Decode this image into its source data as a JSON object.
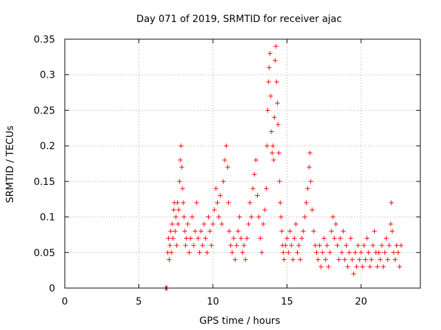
{
  "chart_data": {
    "type": "scatter",
    "title": "Day 071 of 2019, SRMTID for receiver ajac",
    "xlabel": "GPS time / hours",
    "ylabel": "SRMTID / TECUs",
    "xlim": [
      0,
      24
    ],
    "ylim": [
      0,
      0.35
    ],
    "xticks": [
      0,
      5,
      10,
      15,
      20
    ],
    "xtick_labels": [
      "0",
      "5",
      "10",
      "15",
      "20"
    ],
    "yticks": [
      0,
      0.05,
      0.1,
      0.15,
      0.2,
      0.25,
      0.3,
      0.35
    ],
    "ytick_labels": [
      "0",
      "0.05",
      "0.1",
      "0.15",
      "0.2",
      "0.25",
      "0.3",
      "0.35"
    ],
    "grid": true,
    "marker": "plus",
    "color": "#ff0000",
    "series": [
      {
        "name": "SRMTID",
        "points": [
          [
            6.8,
            0.0
          ],
          [
            6.85,
            0.0
          ],
          [
            6.9,
            0.0
          ],
          [
            6.95,
            0.05
          ],
          [
            7.0,
            0.07
          ],
          [
            7.05,
            0.04
          ],
          [
            7.1,
            0.06
          ],
          [
            7.15,
            0.08
          ],
          [
            7.2,
            0.05
          ],
          [
            7.25,
            0.09
          ],
          [
            7.3,
            0.07
          ],
          [
            7.35,
            0.11
          ],
          [
            7.4,
            0.12
          ],
          [
            7.45,
            0.08
          ],
          [
            7.5,
            0.1
          ],
          [
            7.55,
            0.06
          ],
          [
            7.6,
            0.12
          ],
          [
            7.65,
            0.09
          ],
          [
            7.7,
            0.11
          ],
          [
            7.75,
            0.15
          ],
          [
            7.8,
            0.18
          ],
          [
            7.85,
            0.2
          ],
          [
            7.9,
            0.17
          ],
          [
            7.95,
            0.14
          ],
          [
            8.0,
            0.12
          ],
          [
            8.05,
            0.1
          ],
          [
            8.1,
            0.08
          ],
          [
            8.15,
            0.06
          ],
          [
            8.2,
            0.07
          ],
          [
            8.3,
            0.09
          ],
          [
            8.4,
            0.05
          ],
          [
            8.5,
            0.07
          ],
          [
            8.6,
            0.1
          ],
          [
            8.7,
            0.06
          ],
          [
            8.8,
            0.08
          ],
          [
            8.9,
            0.12
          ],
          [
            9.0,
            0.07
          ],
          [
            9.1,
            0.05
          ],
          [
            9.2,
            0.08
          ],
          [
            9.3,
            0.06
          ],
          [
            9.4,
            0.09
          ],
          [
            9.5,
            0.07
          ],
          [
            9.6,
            0.05
          ],
          [
            9.7,
            0.1
          ],
          [
            9.8,
            0.08
          ],
          [
            9.9,
            0.06
          ],
          [
            10.0,
            0.09
          ],
          [
            10.1,
            0.11
          ],
          [
            10.2,
            0.14
          ],
          [
            10.3,
            0.12
          ],
          [
            10.4,
            0.1
          ],
          [
            10.5,
            0.13
          ],
          [
            10.6,
            0.09
          ],
          [
            10.7,
            0.15
          ],
          [
            10.8,
            0.18
          ],
          [
            10.9,
            0.2
          ],
          [
            11.0,
            0.17
          ],
          [
            11.05,
            0.12
          ],
          [
            11.1,
            0.08
          ],
          [
            11.2,
            0.06
          ],
          [
            11.3,
            0.05
          ],
          [
            11.4,
            0.07
          ],
          [
            11.5,
            0.04
          ],
          [
            11.6,
            0.06
          ],
          [
            11.7,
            0.08
          ],
          [
            11.8,
            0.1
          ],
          [
            11.9,
            0.07
          ],
          [
            12.0,
            0.05
          ],
          [
            12.1,
            0.06
          ],
          [
            12.2,
            0.04
          ],
          [
            12.3,
            0.07
          ],
          [
            12.4,
            0.09
          ],
          [
            12.5,
            0.12
          ],
          [
            12.6,
            0.1
          ],
          [
            12.7,
            0.14
          ],
          [
            12.8,
            0.16
          ],
          [
            12.9,
            0.18
          ],
          [
            13.0,
            0.13
          ],
          [
            13.1,
            0.1
          ],
          [
            13.2,
            0.07
          ],
          [
            13.3,
            0.05
          ],
          [
            13.4,
            0.09
          ],
          [
            13.5,
            0.11
          ],
          [
            13.6,
            0.14
          ],
          [
            13.65,
            0.2
          ],
          [
            13.7,
            0.25
          ],
          [
            13.75,
            0.29
          ],
          [
            13.8,
            0.31
          ],
          [
            13.85,
            0.33
          ],
          [
            13.9,
            0.27
          ],
          [
            13.95,
            0.22
          ],
          [
            14.0,
            0.19
          ],
          [
            14.05,
            0.2
          ],
          [
            14.1,
            0.18
          ],
          [
            14.15,
            0.24
          ],
          [
            14.2,
            0.32
          ],
          [
            14.25,
            0.34
          ],
          [
            14.3,
            0.29
          ],
          [
            14.35,
            0.26
          ],
          [
            14.4,
            0.23
          ],
          [
            14.45,
            0.19
          ],
          [
            14.5,
            0.15
          ],
          [
            14.55,
            0.12
          ],
          [
            14.6,
            0.1
          ],
          [
            14.65,
            0.08
          ],
          [
            14.7,
            0.06
          ],
          [
            14.75,
            0.05
          ],
          [
            14.8,
            0.04
          ],
          [
            14.9,
            0.06
          ],
          [
            15.0,
            0.07
          ],
          [
            15.1,
            0.05
          ],
          [
            15.2,
            0.08
          ],
          [
            15.3,
            0.06
          ],
          [
            15.4,
            0.04
          ],
          [
            15.5,
            0.07
          ],
          [
            15.6,
            0.09
          ],
          [
            15.7,
            0.05
          ],
          [
            15.8,
            0.06
          ],
          [
            15.9,
            0.04
          ],
          [
            16.0,
            0.07
          ],
          [
            16.1,
            0.08
          ],
          [
            16.2,
            0.1
          ],
          [
            16.3,
            0.12
          ],
          [
            16.4,
            0.14
          ],
          [
            16.5,
            0.17
          ],
          [
            16.55,
            0.19
          ],
          [
            16.6,
            0.15
          ],
          [
            16.7,
            0.11
          ],
          [
            16.8,
            0.08
          ],
          [
            16.9,
            0.06
          ],
          [
            17.0,
            0.05
          ],
          [
            17.1,
            0.04
          ],
          [
            17.2,
            0.06
          ],
          [
            17.3,
            0.03
          ],
          [
            17.4,
            0.05
          ],
          [
            17.5,
            0.07
          ],
          [
            17.6,
            0.04
          ],
          [
            17.7,
            0.06
          ],
          [
            17.8,
            0.03
          ],
          [
            17.9,
            0.05
          ],
          [
            18.0,
            0.08
          ],
          [
            18.1,
            0.1
          ],
          [
            18.2,
            0.07
          ],
          [
            18.3,
            0.09
          ],
          [
            18.4,
            0.06
          ],
          [
            18.5,
            0.04
          ],
          [
            18.6,
            0.07
          ],
          [
            18.7,
            0.05
          ],
          [
            18.8,
            0.08
          ],
          [
            18.9,
            0.04
          ],
          [
            19.0,
            0.06
          ],
          [
            19.1,
            0.03
          ],
          [
            19.2,
            0.05
          ],
          [
            19.3,
            0.07
          ],
          [
            19.4,
            0.04
          ],
          [
            19.5,
            0.02
          ],
          [
            19.6,
            0.05
          ],
          [
            19.7,
            0.03
          ],
          [
            19.8,
            0.06
          ],
          [
            19.9,
            0.04
          ],
          [
            20.0,
            0.05
          ],
          [
            20.1,
            0.03
          ],
          [
            20.2,
            0.06
          ],
          [
            20.3,
            0.04
          ],
          [
            20.4,
            0.07
          ],
          [
            20.5,
            0.05
          ],
          [
            20.6,
            0.03
          ],
          [
            20.7,
            0.04
          ],
          [
            20.8,
            0.06
          ],
          [
            20.9,
            0.08
          ],
          [
            21.0,
            0.05
          ],
          [
            21.1,
            0.03
          ],
          [
            21.2,
            0.05
          ],
          [
            21.3,
            0.04
          ],
          [
            21.4,
            0.06
          ],
          [
            21.5,
            0.03
          ],
          [
            21.6,
            0.05
          ],
          [
            21.7,
            0.07
          ],
          [
            21.8,
            0.04
          ],
          [
            21.9,
            0.06
          ],
          [
            22.0,
            0.09
          ],
          [
            22.05,
            0.12
          ],
          [
            22.1,
            0.08
          ],
          [
            22.2,
            0.05
          ],
          [
            22.3,
            0.04
          ],
          [
            22.4,
            0.06
          ],
          [
            22.5,
            0.05
          ],
          [
            22.6,
            0.03
          ],
          [
            22.7,
            0.06
          ]
        ]
      }
    ]
  }
}
